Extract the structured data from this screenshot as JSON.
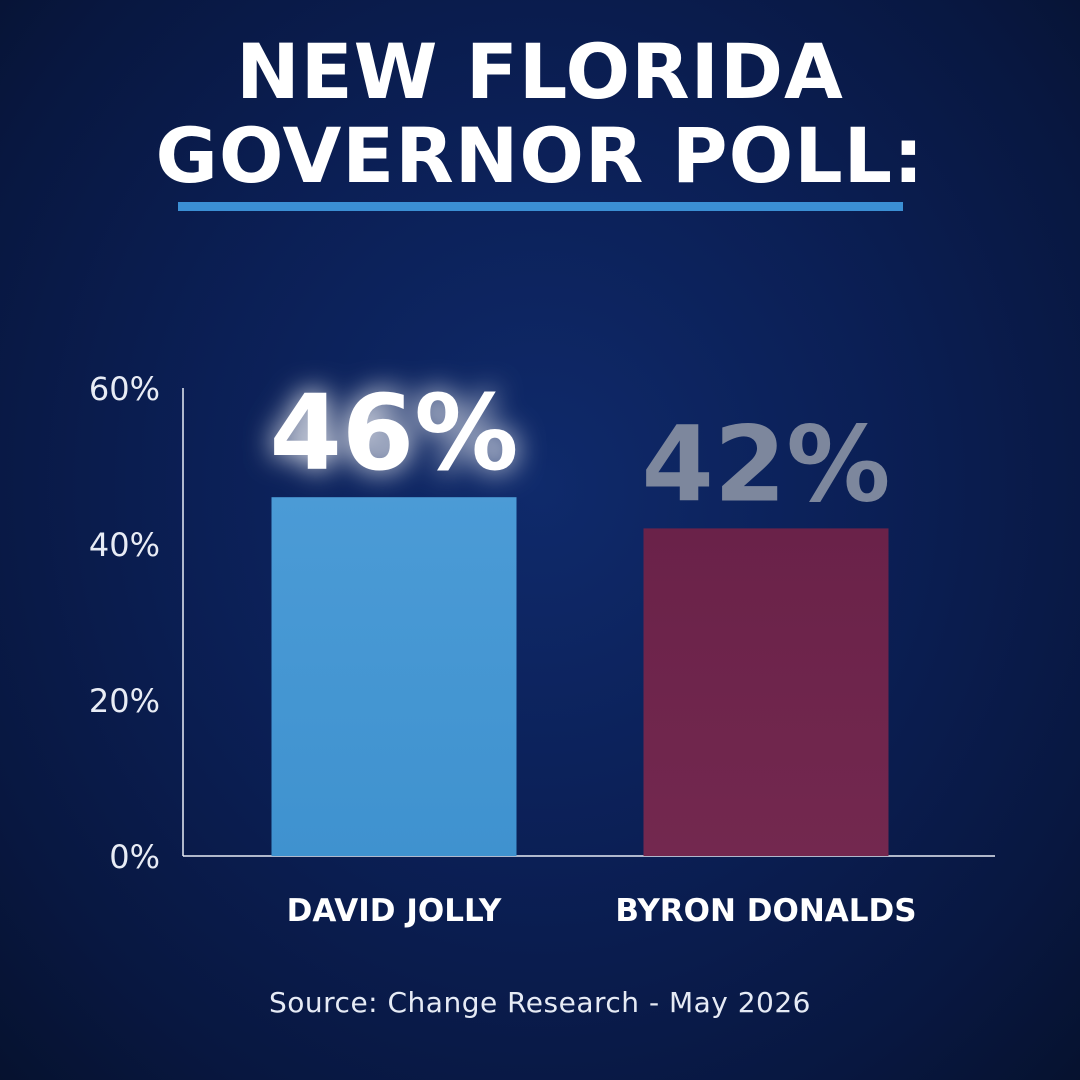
{
  "header": {
    "title_line1": "NEW FLORIDA",
    "title_line2": "GOVERNOR POLL:"
  },
  "source": "Source: Change Research - May 2026",
  "colors": {
    "background": "#0b1f55",
    "accent_rule": "#3b8fd4",
    "jolly_bar": "#4596d0",
    "donalds_bar": "#6c244b",
    "label_highlight": "#ffffff",
    "label_muted": "#7d879d"
  },
  "chart_data": {
    "type": "bar",
    "categories": [
      "DAVID JOLLY",
      "BYRON DONALDS"
    ],
    "values": [
      46,
      42
    ],
    "data_labels": [
      "46%",
      "42%"
    ],
    "yticks": [
      "0%",
      "20%",
      "40%",
      "60%"
    ],
    "ytick_values": [
      0,
      20,
      40,
      60
    ],
    "ylim": [
      0,
      60
    ],
    "grid": false,
    "legend": "none"
  }
}
